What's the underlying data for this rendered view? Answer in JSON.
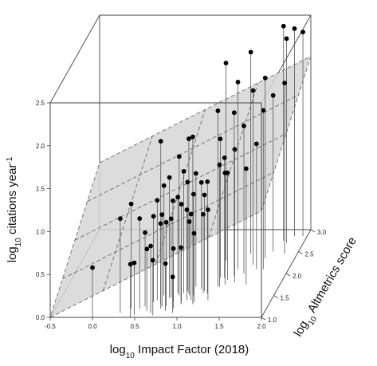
{
  "chart_data": {
    "type": "scatter",
    "subtype": "3d-scatter-with-regression-plane",
    "x_axis": {
      "label_main": "log",
      "label_sub": "10",
      "label_rest": " Impact Factor (2018)",
      "ticks": [
        "-0.5",
        "0.0",
        "0.5",
        "1.0",
        "1.5",
        "2.0"
      ],
      "range": [
        -0.5,
        2.0
      ]
    },
    "y_axis": {
      "label_main": "log",
      "label_sub": "10",
      "label_rest": " Altmetrics score",
      "ticks": [
        "1.0",
        "1.5",
        "2.0",
        "2.5",
        "3.0"
      ],
      "range": [
        1.0,
        3.0
      ]
    },
    "z_axis": {
      "label_main": "log",
      "label_sub": "10",
      "label_mid": " citations year",
      "label_sup": "-1",
      "ticks": [
        "0.0",
        "0.5",
        "1.0",
        "1.5",
        "2.0",
        "2.5"
      ],
      "range": [
        0.0,
        2.5
      ]
    },
    "plane": {
      "corners": [
        [
          -0.5,
          1.0,
          0.0
        ],
        [
          2.0,
          1.0,
          1.24
        ],
        [
          2.0,
          3.0,
          2.02
        ],
        [
          -0.5,
          3.0,
          0.78
        ]
      ],
      "fill": "#d6d6d6",
      "edge": "#7a7a7a",
      "grid_style": "dashed"
    },
    "points": [
      [
        0.0,
        1.0,
        0.58
      ],
      [
        0.45,
        1.0,
        0.62
      ],
      [
        0.48,
        1.05,
        0.61
      ],
      [
        0.62,
        1.35,
        1.0
      ],
      [
        0.72,
        1.3,
        0.94
      ],
      [
        0.8,
        1.45,
        0.92
      ],
      [
        0.55,
        1.25,
        0.86
      ],
      [
        0.66,
        1.1,
        0.78
      ],
      [
        0.9,
        1.2,
        0.7
      ],
      [
        0.82,
        1.15,
        0.55
      ],
      [
        0.96,
        1.3,
        0.66
      ],
      [
        1.1,
        1.35,
        0.8
      ],
      [
        1.0,
        1.4,
        1.05
      ],
      [
        0.85,
        1.55,
        1.12
      ],
      [
        0.7,
        1.5,
        1.28
      ],
      [
        0.95,
        1.6,
        1.27
      ],
      [
        1.05,
        1.5,
        1.18
      ],
      [
        1.2,
        1.55,
        1.3
      ],
      [
        0.78,
        1.45,
        1.4
      ],
      [
        0.92,
        1.55,
        1.42
      ],
      [
        1.02,
        1.7,
        1.32
      ],
      [
        1.15,
        1.6,
        1.12
      ],
      [
        0.85,
        1.35,
        1.18
      ],
      [
        0.4,
        1.2,
        1.22
      ],
      [
        0.3,
        1.1,
        1.1
      ],
      [
        0.75,
        1.25,
        1.07
      ],
      [
        0.65,
        1.4,
        1.16
      ],
      [
        1.25,
        1.4,
        1.05
      ],
      [
        1.35,
        1.75,
        1.3
      ],
      [
        1.0,
        1.5,
        0.86
      ],
      [
        0.8,
        1.25,
        0.98
      ],
      [
        0.5,
        1.2,
        1.05
      ],
      [
        0.95,
        1.35,
        1.14
      ],
      [
        1.1,
        1.65,
        1.24
      ],
      [
        1.3,
        1.7,
        1.42
      ],
      [
        1.45,
        1.8,
        1.55
      ],
      [
        1.5,
        2.0,
        1.72
      ],
      [
        1.6,
        1.75,
        1.35
      ],
      [
        1.25,
        1.9,
        1.62
      ],
      [
        1.4,
        1.95,
        1.9
      ],
      [
        0.88,
        1.5,
        1.62
      ],
      [
        0.98,
        1.55,
        1.8
      ],
      [
        0.75,
        1.2,
        1.95
      ],
      [
        1.1,
        1.3,
        1.95
      ],
      [
        1.28,
        1.7,
        2.05
      ],
      [
        1.4,
        2.1,
        2.18
      ],
      [
        1.55,
        2.2,
        2.03
      ],
      [
        1.7,
        2.1,
        1.85
      ],
      [
        1.65,
        2.35,
        2.1
      ],
      [
        1.45,
        2.45,
        2.35
      ],
      [
        1.2,
        2.3,
        2.3
      ],
      [
        1.75,
        2.75,
        2.5
      ],
      [
        1.85,
        2.85,
        2.42
      ],
      [
        1.8,
        2.7,
        2.38
      ],
      [
        1.95,
        2.85,
        2.38
      ],
      [
        1.85,
        2.45,
        1.99
      ],
      [
        1.7,
        2.5,
        1.82
      ],
      [
        1.3,
        1.9,
        1.4
      ],
      [
        1.05,
        1.4,
        1.0
      ],
      [
        0.92,
        1.1,
        0.42
      ],
      [
        0.6,
        1.15,
        0.72
      ],
      [
        0.7,
        1.05,
        0.64
      ],
      [
        1.15,
        1.55,
        0.92
      ],
      [
        1.35,
        1.85,
        1.25
      ],
      [
        1.62,
        2.1,
        1.46
      ]
    ],
    "grid": false,
    "legend": "none",
    "colors": {
      "points": "#000000",
      "droplines": "#555555",
      "box": "#444444"
    }
  }
}
